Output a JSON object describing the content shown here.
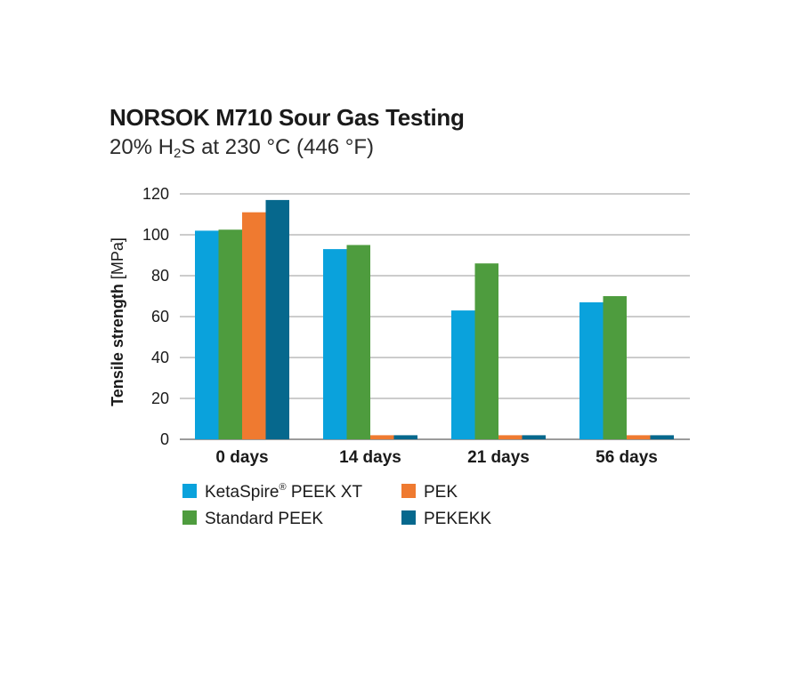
{
  "chart_data": {
    "type": "bar",
    "title": "NORSOK M710 Sour Gas Testing",
    "subtitle": {
      "prefix": "20% H",
      "subscript": "2",
      "suffix": "S at 230 °C (446 °F)"
    },
    "ylabel": {
      "bold": "Tensile strength",
      "unit": " [MPa]"
    },
    "ylim": [
      0,
      120
    ],
    "yticks": [
      0,
      20,
      40,
      60,
      80,
      100,
      120
    ],
    "grid": true,
    "legend_placement": "bottom",
    "categories": [
      "0 days",
      "14 days",
      "21 days",
      "56 days"
    ],
    "series": [
      {
        "name": "KetaSpire",
        "name_sup": "®",
        "name_suffix": " PEEK XT",
        "color": "#0aa2dc",
        "values": [
          102,
          93,
          63,
          67
        ]
      },
      {
        "name": "Standard PEEK",
        "color": "#4e9c3e",
        "values": [
          102.5,
          95,
          86,
          70
        ]
      },
      {
        "name": "PEK",
        "color": "#ef7a30",
        "values": [
          111,
          2,
          2,
          2
        ]
      },
      {
        "name": "PEKEKK",
        "color": "#06688d",
        "values": [
          117,
          2,
          2,
          2
        ]
      }
    ]
  }
}
